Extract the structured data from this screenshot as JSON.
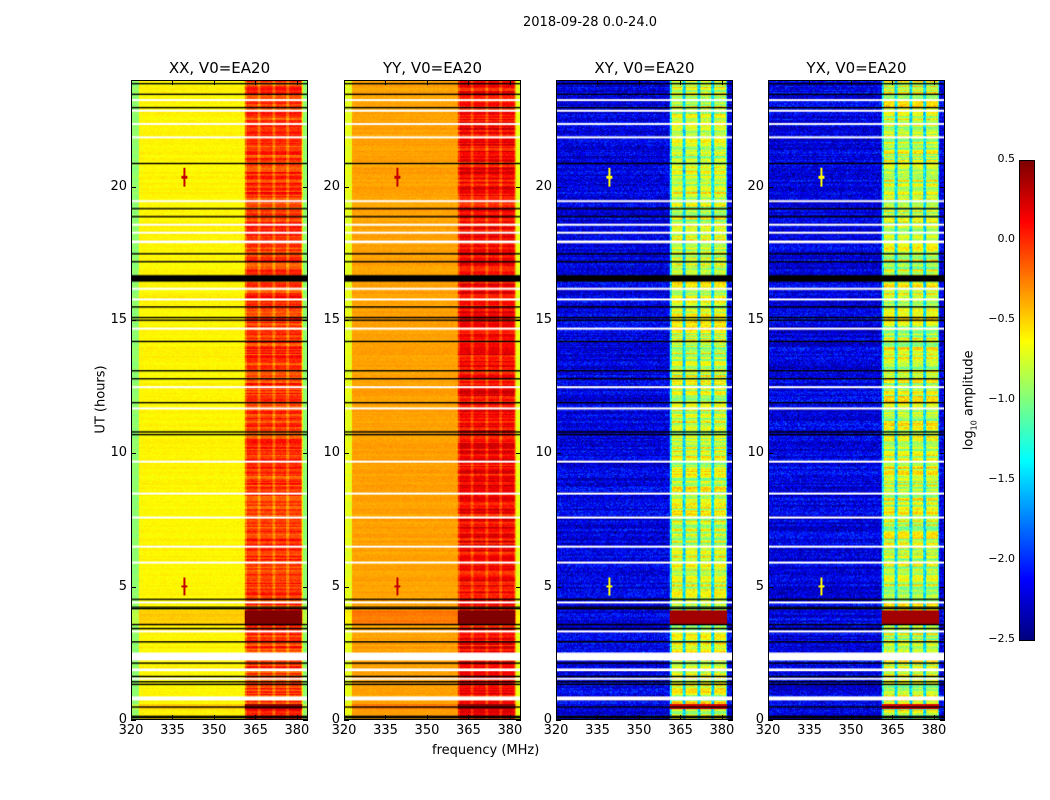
{
  "chart_data": {
    "type": "heatmap",
    "title": "2018-09-28 0.0-24.0",
    "xlabel": "frequency (MHz)",
    "ylabel": "UT (hours)",
    "xlim": [
      320,
      384
    ],
    "ylim": [
      0,
      24
    ],
    "xticks": [
      "320",
      "335",
      "350",
      "365",
      "380"
    ],
    "yticks": [
      "0",
      "5",
      "10",
      "15",
      "20"
    ],
    "panels": [
      {
        "title": "XX, V0=EA20",
        "base": -0.6,
        "band_level": -0.1
      },
      {
        "title": "YY, V0=EA20",
        "base": -0.35,
        "band_level": 0.05
      },
      {
        "title": "XY, V0=EA20",
        "base": -2.2,
        "band_level": -0.9
      },
      {
        "title": "YX, V0=EA20",
        "base": -2.2,
        "band_level": -0.9
      }
    ],
    "rfi_band_mhz": [
      361,
      382
    ],
    "strong_events_hours": [
      [
        3.6,
        4.1
      ],
      [
        0.4,
        0.6
      ]
    ],
    "point_sources": [
      {
        "freq": 339,
        "hour": 5.0
      },
      {
        "freq": 339,
        "hour": 20.4
      }
    ],
    "flagged_black_hours": [
      0.05,
      0.1,
      0.45,
      1.3,
      1.4,
      1.6,
      2.1,
      2.9,
      3.4,
      3.55,
      4.15,
      4.2,
      4.5,
      10.7,
      10.8,
      11.9,
      12.8,
      13.1,
      14.2,
      15.0,
      15.1,
      15.5,
      17.2,
      17.5,
      18.9,
      19.2,
      20.9,
      23.0,
      23.5,
      23.9
    ],
    "flagged_black_ranges": [
      [
        16.45,
        16.7
      ]
    ],
    "flagged_white_ranges": [
      [
        0.7,
        0.85
      ],
      [
        1.48,
        1.55
      ],
      [
        1.8,
        1.9
      ],
      [
        2.2,
        2.5
      ],
      [
        3.28,
        3.33
      ],
      [
        4.38,
        4.42
      ],
      [
        5.88,
        5.92
      ],
      [
        6.48,
        6.52
      ],
      [
        7.58,
        7.62
      ],
      [
        8.48,
        8.52
      ],
      [
        9.68,
        9.72
      ],
      [
        11.68,
        11.72
      ],
      [
        12.48,
        12.52
      ],
      [
        14.68,
        14.72
      ],
      [
        15.78,
        15.82
      ],
      [
        16.18,
        16.22
      ],
      [
        17.9,
        18.0
      ],
      [
        18.28,
        18.33
      ],
      [
        18.58,
        18.63
      ],
      [
        19.48,
        19.52
      ],
      [
        21.88,
        21.92
      ],
      [
        22.38,
        22.42
      ],
      [
        22.88,
        22.92
      ],
      [
        23.28,
        23.32
      ]
    ],
    "colorbar": {
      "label": "log10 amplitude",
      "label_main": "log",
      "label_sub": "10",
      "label_rest": " amplitude",
      "range": [
        -2.5,
        0.5
      ],
      "ticks": [
        "0.5",
        "0.0",
        "−0.5",
        "−1.0",
        "−1.5",
        "−2.0",
        "−2.5"
      ],
      "colormap": "jet"
    }
  }
}
